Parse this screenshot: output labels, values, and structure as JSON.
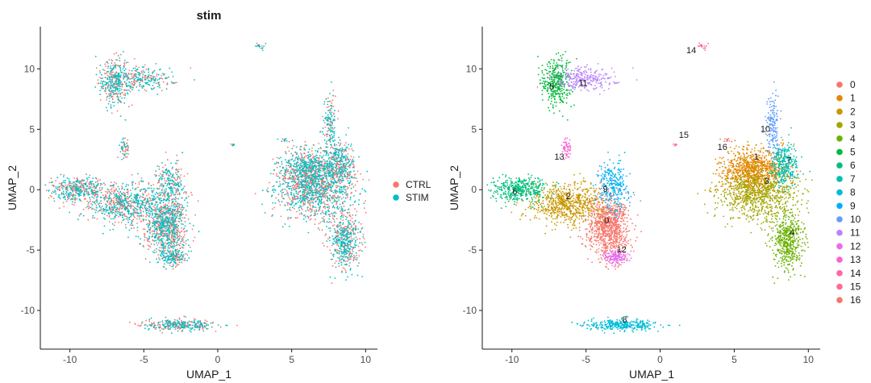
{
  "chart_data": [
    {
      "type": "scatter",
      "title": "stim",
      "xlabel": "UMAP_1",
      "ylabel": "UMAP_2",
      "xlim": [
        -12,
        10.8
      ],
      "ylim": [
        -13.2,
        13.5
      ],
      "xticks": [
        -10,
        -5,
        0,
        5,
        10
      ],
      "yticks": [
        -10,
        -5,
        0,
        5,
        10
      ],
      "xtick_labels": [
        "-10",
        "-5",
        "0",
        "5",
        "10"
      ],
      "ytick_labels": [
        "-10",
        "-5",
        "0",
        "5",
        "10"
      ],
      "grid": false,
      "legend_position": "right",
      "series": [
        {
          "name": "CTRL",
          "color": "#F8766D"
        },
        {
          "name": "STIM",
          "color": "#00BFC4"
        }
      ]
    },
    {
      "type": "scatter",
      "title": "",
      "xlabel": "UMAP_1",
      "ylabel": "UMAP_2",
      "xlim": [
        -12,
        10.8
      ],
      "ylim": [
        -13.2,
        13.5
      ],
      "xticks": [
        -10,
        -5,
        0,
        5,
        10
      ],
      "yticks": [
        -10,
        -5,
        0,
        5,
        10
      ],
      "xtick_labels": [
        "-10",
        "-5",
        "0",
        "5",
        "10"
      ],
      "ytick_labels": [
        "-10",
        "-5",
        "0",
        "5",
        "10"
      ],
      "grid": false,
      "legend_position": "right",
      "series": [
        {
          "name": "0",
          "color": "#F8766D"
        },
        {
          "name": "1",
          "color": "#E58700"
        },
        {
          "name": "2",
          "color": "#C99800"
        },
        {
          "name": "3",
          "color": "#A3A500"
        },
        {
          "name": "4",
          "color": "#6BB100"
        },
        {
          "name": "5",
          "color": "#00BA38"
        },
        {
          "name": "6",
          "color": "#00BF7D"
        },
        {
          "name": "7",
          "color": "#00C0AF"
        },
        {
          "name": "8",
          "color": "#00BCD8"
        },
        {
          "name": "9",
          "color": "#00B0F6"
        },
        {
          "name": "10",
          "color": "#619CFF"
        },
        {
          "name": "11",
          "color": "#B983FF"
        },
        {
          "name": "12",
          "color": "#E76BF3"
        },
        {
          "name": "13",
          "color": "#FD61D1"
        },
        {
          "name": "14",
          "color": "#FF67A4"
        },
        {
          "name": "15",
          "color": "#FF6C91"
        },
        {
          "name": "16",
          "color": "#F8766D"
        }
      ],
      "clusters": [
        {
          "id": "0",
          "palette": "#F8766D",
          "cx": -3.5,
          "cy": -3.0,
          "sx": 0.7,
          "sy": 1.3,
          "n": 900,
          "label_x": -3.6,
          "label_y": -2.8
        },
        {
          "id": "1",
          "palette": "#E58700",
          "cx": 6.3,
          "cy": 1.6,
          "sx": 1.1,
          "sy": 0.9,
          "n": 900,
          "label_x": 6.5,
          "label_y": 2.5
        },
        {
          "id": "2",
          "palette": "#C99800",
          "cx": -6.3,
          "cy": -1.2,
          "sx": 1.2,
          "sy": 0.8,
          "n": 700,
          "label_x": -6.2,
          "label_y": -0.8
        },
        {
          "id": "3",
          "palette": "#A3A500",
          "cx": 6.6,
          "cy": -0.4,
          "sx": 1.3,
          "sy": 1.0,
          "n": 800,
          "label_x": 7.2,
          "label_y": 0.5
        },
        {
          "id": "4",
          "palette": "#6BB100",
          "cx": 8.6,
          "cy": -4.2,
          "sx": 0.5,
          "sy": 1.2,
          "n": 500,
          "label_x": 8.9,
          "label_y": -3.8
        },
        {
          "id": "5",
          "palette": "#00BA38",
          "cx": -7.0,
          "cy": 9.0,
          "sx": 0.5,
          "sy": 1.0,
          "n": 350,
          "label_x": -7.3,
          "label_y": 8.3
        },
        {
          "id": "6",
          "palette": "#00BF7D",
          "cx": -9.5,
          "cy": 0.0,
          "sx": 0.9,
          "sy": 0.5,
          "n": 400,
          "label_x": -9.8,
          "label_y": -0.4
        },
        {
          "id": "7",
          "palette": "#00C0AF",
          "cx": 8.4,
          "cy": 2.0,
          "sx": 0.45,
          "sy": 0.9,
          "n": 300,
          "label_x": 8.7,
          "label_y": 2.2
        },
        {
          "id": "8",
          "palette": "#00BCD8",
          "cx": -2.5,
          "cy": -11.2,
          "sx": 1.2,
          "sy": 0.22,
          "n": 320,
          "label_x": -2.4,
          "label_y": -11.0
        },
        {
          "id": "9",
          "palette": "#00B0F6",
          "cx": -3.2,
          "cy": 0.3,
          "sx": 0.5,
          "sy": 1.0,
          "n": 260,
          "label_x": -3.7,
          "label_y": -0.2
        },
        {
          "id": "10",
          "palette": "#619CFF",
          "cx": 7.6,
          "cy": 5.5,
          "sx": 0.25,
          "sy": 1.3,
          "n": 160,
          "label_x": 7.1,
          "label_y": 4.8
        },
        {
          "id": "11",
          "palette": "#B983FF",
          "cx": -5.0,
          "cy": 9.2,
          "sx": 1.0,
          "sy": 0.45,
          "n": 260,
          "label_x": -5.2,
          "label_y": 8.6
        },
        {
          "id": "12",
          "palette": "#E76BF3",
          "cx": -3.0,
          "cy": -5.6,
          "sx": 0.4,
          "sy": 0.3,
          "n": 140,
          "label_x": -2.6,
          "label_y": -5.2
        },
        {
          "id": "13",
          "palette": "#FD61D1",
          "cx": -6.3,
          "cy": 3.4,
          "sx": 0.15,
          "sy": 0.45,
          "n": 55,
          "label_x": -6.8,
          "label_y": 2.5
        },
        {
          "id": "14",
          "palette": "#FF67A4",
          "cx": 2.9,
          "cy": 11.9,
          "sx": 0.18,
          "sy": 0.15,
          "n": 20,
          "label_x": 2.1,
          "label_y": 11.3
        },
        {
          "id": "15",
          "palette": "#FF6C91",
          "cx": 1.0,
          "cy": 3.7,
          "sx": 0.07,
          "sy": 0.07,
          "n": 8,
          "label_x": 1.6,
          "label_y": 4.3
        },
        {
          "id": "16",
          "palette": "#F8766D",
          "cx": 4.6,
          "cy": 4.1,
          "sx": 0.12,
          "sy": 0.08,
          "n": 10,
          "label_x": 4.2,
          "label_y": 3.3
        }
      ]
    }
  ]
}
